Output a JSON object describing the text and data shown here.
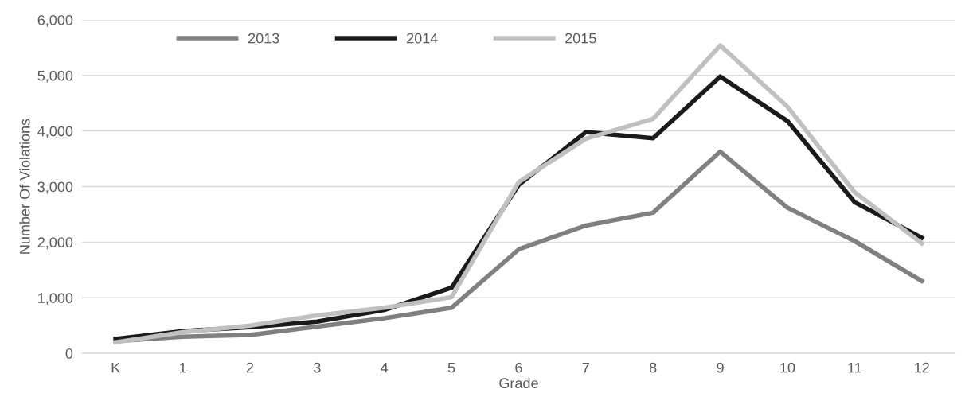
{
  "chart_data": {
    "type": "line",
    "xlabel": "Grade",
    "ylabel": "Number Of Violations",
    "categories": [
      "K",
      "1",
      "2",
      "3",
      "4",
      "5",
      "6",
      "7",
      "8",
      "9",
      "10",
      "11",
      "12"
    ],
    "series": [
      {
        "name": "2013",
        "color": "#808080",
        "values": [
          220,
          300,
          330,
          480,
          630,
          820,
          1870,
          2300,
          2530,
          3630,
          2620,
          2020,
          1300
        ]
      },
      {
        "name": "2014",
        "color": "#1a1a1a",
        "values": [
          260,
          400,
          470,
          570,
          780,
          1180,
          3030,
          3980,
          3870,
          4980,
          4180,
          2720,
          2080
        ]
      },
      {
        "name": "2015",
        "color": "#c0c0c0",
        "values": [
          200,
          380,
          500,
          680,
          820,
          1010,
          3080,
          3860,
          4220,
          5540,
          4440,
          2900,
          1980
        ]
      }
    ],
    "ylim": [
      0,
      6000
    ],
    "yticks": [
      {
        "value": 0,
        "label": "0"
      },
      {
        "value": 1000,
        "label": "1,000"
      },
      {
        "value": 2000,
        "label": "2,000"
      },
      {
        "value": 3000,
        "label": "3,000"
      },
      {
        "value": 4000,
        "label": "4,000"
      },
      {
        "value": 5000,
        "label": "5,000"
      },
      {
        "value": 6000,
        "label": "6,000"
      }
    ],
    "grid": "y",
    "legend": "top",
    "marker": "none",
    "line_style": "solid"
  }
}
